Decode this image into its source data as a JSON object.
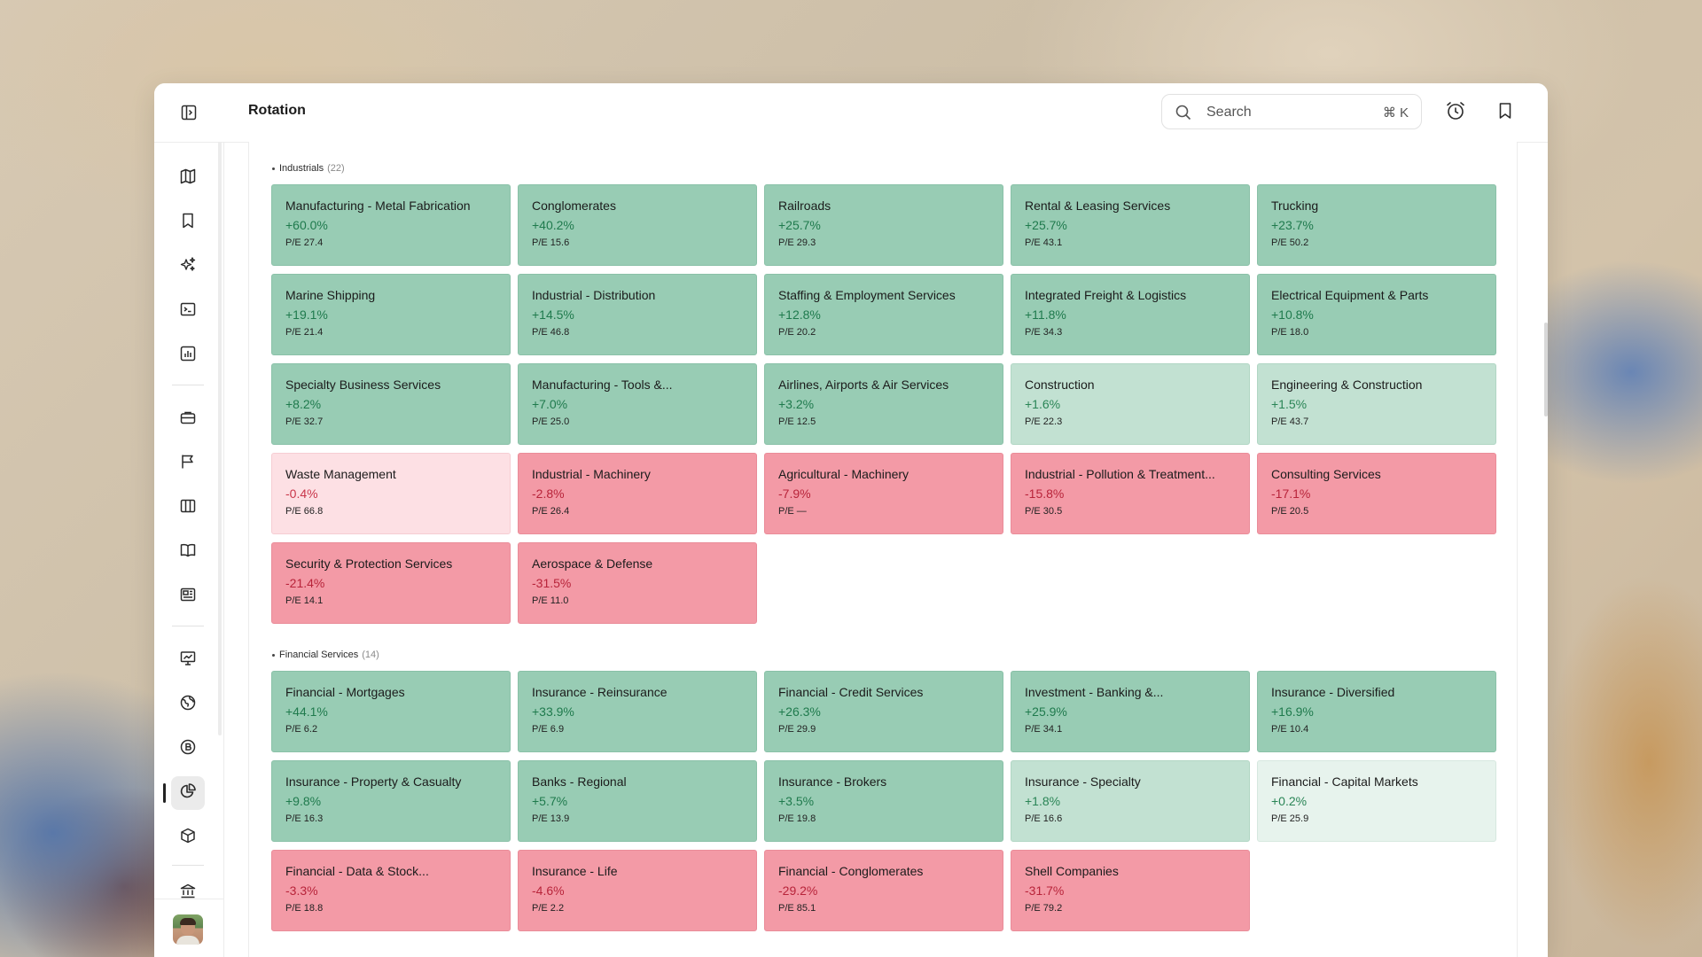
{
  "app": {
    "title": "Rotation"
  },
  "search": {
    "placeholder": "Search",
    "shortcut": "⌘ K"
  },
  "sections": [
    {
      "name": "Industrials",
      "count": "(22)",
      "tiles": [
        {
          "name": "Manufacturing - Metal Fabrication",
          "change": "+60.0%",
          "pe": "P/E 27.4",
          "tone": "pos-strong"
        },
        {
          "name": "Conglomerates",
          "change": "+40.2%",
          "pe": "P/E 15.6",
          "tone": "pos-strong"
        },
        {
          "name": "Railroads",
          "change": "+25.7%",
          "pe": "P/E 29.3",
          "tone": "pos-strong"
        },
        {
          "name": "Rental & Leasing Services",
          "change": "+25.7%",
          "pe": "P/E 43.1",
          "tone": "pos-strong"
        },
        {
          "name": "Trucking",
          "change": "+23.7%",
          "pe": "P/E 50.2",
          "tone": "pos-strong"
        },
        {
          "name": "Marine Shipping",
          "change": "+19.1%",
          "pe": "P/E 21.4",
          "tone": "pos-strong"
        },
        {
          "name": "Industrial - Distribution",
          "change": "+14.5%",
          "pe": "P/E 46.8",
          "tone": "pos-strong"
        },
        {
          "name": "Staffing & Employment Services",
          "change": "+12.8%",
          "pe": "P/E 20.2",
          "tone": "pos-strong"
        },
        {
          "name": "Integrated Freight & Logistics",
          "change": "+11.8%",
          "pe": "P/E 34.3",
          "tone": "pos-strong"
        },
        {
          "name": "Electrical Equipment & Parts",
          "change": "+10.8%",
          "pe": "P/E 18.0",
          "tone": "pos-strong"
        },
        {
          "name": "Specialty Business Services",
          "change": "+8.2%",
          "pe": "P/E 32.7",
          "tone": "pos-strong"
        },
        {
          "name": "Manufacturing - Tools &...",
          "change": "+7.0%",
          "pe": "P/E 25.0",
          "tone": "pos-strong"
        },
        {
          "name": "Airlines, Airports & Air Services",
          "change": "+3.2%",
          "pe": "P/E 12.5",
          "tone": "pos-strong"
        },
        {
          "name": "Construction",
          "change": "+1.6%",
          "pe": "P/E 22.3",
          "tone": "pos-mid"
        },
        {
          "name": "Engineering & Construction",
          "change": "+1.5%",
          "pe": "P/E 43.7",
          "tone": "pos-mid"
        },
        {
          "name": "Waste Management",
          "change": "-0.4%",
          "pe": "P/E 66.8",
          "tone": "neg-light"
        },
        {
          "name": "Industrial - Machinery",
          "change": "-2.8%",
          "pe": "P/E 26.4",
          "tone": "neg-strong"
        },
        {
          "name": "Agricultural - Machinery",
          "change": "-7.9%",
          "pe": "P/E —",
          "tone": "neg-strong"
        },
        {
          "name": "Industrial - Pollution & Treatment...",
          "change": "-15.8%",
          "pe": "P/E 30.5",
          "tone": "neg-strong"
        },
        {
          "name": "Consulting Services",
          "change": "-17.1%",
          "pe": "P/E 20.5",
          "tone": "neg-strong"
        },
        {
          "name": "Security & Protection Services",
          "change": "-21.4%",
          "pe": "P/E 14.1",
          "tone": "neg-strong"
        },
        {
          "name": "Aerospace & Defense",
          "change": "-31.5%",
          "pe": "P/E 11.0",
          "tone": "neg-strong"
        }
      ]
    },
    {
      "name": "Financial Services",
      "count": "(14)",
      "tiles": [
        {
          "name": "Financial - Mortgages",
          "change": "+44.1%",
          "pe": "P/E 6.2",
          "tone": "pos-strong"
        },
        {
          "name": "Insurance - Reinsurance",
          "change": "+33.9%",
          "pe": "P/E 6.9",
          "tone": "pos-strong"
        },
        {
          "name": "Financial - Credit Services",
          "change": "+26.3%",
          "pe": "P/E 29.9",
          "tone": "pos-strong"
        },
        {
          "name": "Investment - Banking &...",
          "change": "+25.9%",
          "pe": "P/E 34.1",
          "tone": "pos-strong"
        },
        {
          "name": "Insurance - Diversified",
          "change": "+16.9%",
          "pe": "P/E 10.4",
          "tone": "pos-strong"
        },
        {
          "name": "Insurance - Property & Casualty",
          "change": "+9.8%",
          "pe": "P/E 16.3",
          "tone": "pos-strong"
        },
        {
          "name": "Banks - Regional",
          "change": "+5.7%",
          "pe": "P/E 13.9",
          "tone": "pos-strong"
        },
        {
          "name": "Insurance - Brokers",
          "change": "+3.5%",
          "pe": "P/E 19.8",
          "tone": "pos-strong"
        },
        {
          "name": "Insurance - Specialty",
          "change": "+1.8%",
          "pe": "P/E 16.6",
          "tone": "pos-mid"
        },
        {
          "name": "Financial - Capital Markets",
          "change": "+0.2%",
          "pe": "P/E 25.9",
          "tone": "pos-light"
        },
        {
          "name": "Financial - Data & Stock...",
          "change": "-3.3%",
          "pe": "P/E 18.8",
          "tone": "neg-strong"
        },
        {
          "name": "Insurance - Life",
          "change": "-4.6%",
          "pe": "P/E 2.2",
          "tone": "neg-strong"
        },
        {
          "name": "Financial - Conglomerates",
          "change": "-29.2%",
          "pe": "P/E 85.1",
          "tone": "neg-strong"
        },
        {
          "name": "Shell Companies",
          "change": "-31.7%",
          "pe": "P/E 79.2",
          "tone": "neg-strong"
        }
      ]
    }
  ],
  "nav": [
    {
      "name": "map-icon"
    },
    {
      "name": "bookmark-icon"
    },
    {
      "name": "sparkles-icon"
    },
    {
      "name": "terminal-icon"
    },
    {
      "name": "bar-chart-icon"
    },
    {
      "name": "briefcase-icon"
    },
    {
      "name": "flag-icon"
    },
    {
      "name": "columns-icon"
    },
    {
      "name": "book-icon"
    },
    {
      "name": "newspaper-icon"
    },
    {
      "name": "presentation-chart-icon"
    },
    {
      "name": "globe-icon"
    },
    {
      "name": "bitcoin-icon"
    },
    {
      "name": "pie-chart-icon",
      "active": true
    },
    {
      "name": "cube-icon"
    },
    {
      "name": "bank-icon"
    }
  ],
  "colors": {
    "positive_strong": "#98ccb4",
    "positive_mid": "#c2e1d2",
    "positive_light": "#e7f3ed",
    "negative_light": "#fde0e4",
    "negative_strong": "#f39aa6"
  }
}
